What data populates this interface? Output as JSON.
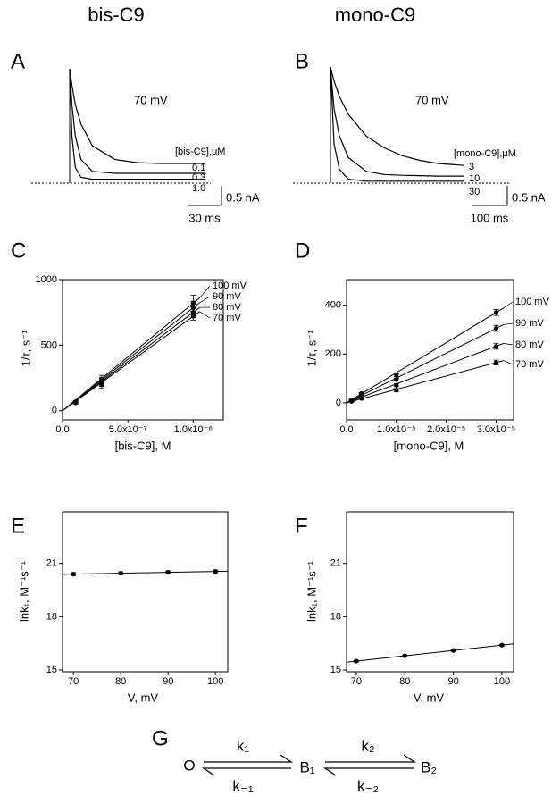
{
  "header": {
    "left": "bis-C9",
    "right": "mono-C9"
  },
  "chart_data": [
    {
      "type": "line",
      "panel": "A",
      "annotation": "70 mV",
      "legend_title": "[bis-C9],μM",
      "x": [
        0,
        2,
        5,
        10,
        20,
        40,
        60,
        80,
        100,
        120
      ],
      "series": [
        {
          "name": "0.1",
          "color": "#000000",
          "values": [
            2.9,
            2.5,
            2.0,
            1.5,
            0.95,
            0.6,
            0.52,
            0.5,
            0.5,
            0.5
          ]
        },
        {
          "name": "0.3",
          "color": "#000000",
          "values": [
            2.9,
            2.0,
            1.2,
            0.6,
            0.3,
            0.25,
            0.25,
            0.25,
            0.25,
            0.25
          ]
        },
        {
          "name": "1.0",
          "color": "#000000",
          "values": [
            2.9,
            1.2,
            0.4,
            0.15,
            0.1,
            0.1,
            0.1,
            0.1,
            0.1,
            0.1
          ]
        }
      ],
      "scale_bar": {
        "x": {
          "value": 30,
          "label": "30 ms"
        },
        "y": {
          "value": 0.5,
          "label": "0.5 nA"
        }
      }
    },
    {
      "type": "line",
      "panel": "B",
      "annotation": "70 mV",
      "legend_title": "[mono-C9],μM",
      "x": [
        0,
        10,
        25,
        50,
        100,
        150,
        200,
        250,
        300,
        375
      ],
      "series": [
        {
          "name": "3",
          "color": "#000000",
          "values": [
            2.95,
            2.6,
            2.2,
            1.75,
            1.2,
            0.9,
            0.7,
            0.58,
            0.5,
            0.45
          ]
        },
        {
          "name": "10",
          "color": "#000000",
          "values": [
            2.95,
            1.9,
            1.2,
            0.65,
            0.3,
            0.22,
            0.2,
            0.19,
            0.18,
            0.18
          ]
        },
        {
          "name": "30",
          "color": "#000000",
          "values": [
            2.95,
            1.0,
            0.35,
            0.1,
            0.05,
            0.05,
            0.05,
            0.05,
            0.05,
            0.05
          ]
        }
      ],
      "scale_bar": {
        "x": {
          "value": 100,
          "label": "100 ms"
        },
        "y": {
          "value": 0.5,
          "label": "0.5 nA"
        }
      }
    },
    {
      "type": "scatter",
      "panel": "C",
      "x_label": "[bis-C9], M",
      "y_label": "1/τ, s⁻¹",
      "fit": "origin",
      "x": [
        1e-07,
        3e-07,
        1e-06
      ],
      "series": [
        {
          "name": "100 mV",
          "color": "#000000",
          "values": [
            68,
            240,
            820
          ],
          "errors": [
            8,
            30,
            60
          ]
        },
        {
          "name": "90 mV",
          "color": "#000000",
          "values": [
            65,
            225,
            785
          ],
          "errors": [
            8,
            30,
            50
          ]
        },
        {
          "name": "80 mV",
          "color": "#000000",
          "values": [
            62,
            215,
            750
          ],
          "errors": [
            8,
            30,
            40
          ]
        },
        {
          "name": "70 mV",
          "color": "#000000",
          "values": [
            60,
            200,
            720
          ],
          "errors": [
            8,
            30,
            30
          ]
        }
      ],
      "xlim": [
        0,
        1.23e-06
      ],
      "xticks": [
        {
          "value": 0,
          "label": "0.0"
        },
        {
          "value": 5e-07,
          "label": "5.0x10⁻⁷"
        },
        {
          "value": 1e-06,
          "label": "1.0x10⁻⁶"
        }
      ],
      "ylim": [
        -70,
        1000
      ],
      "yticks": [
        0,
        500,
        1000
      ]
    },
    {
      "type": "scatter",
      "panel": "D",
      "x_label": "[mono-C9], M",
      "y_label": "1/τ, s⁻¹",
      "fit": "origin",
      "x": [
        1e-06,
        3e-06,
        1e-05,
        3e-05
      ],
      "series": [
        {
          "name": "100 mV",
          "color": "#000000",
          "values": [
            12,
            38,
            113,
            370
          ],
          "errors": [
            3,
            4,
            6,
            12
          ]
        },
        {
          "name": "90 mV",
          "color": "#000000",
          "values": [
            10,
            32,
            95,
            305
          ],
          "errors": [
            3,
            4,
            6,
            12
          ]
        },
        {
          "name": "80 mV",
          "color": "#000000",
          "values": [
            8,
            25,
            72,
            232
          ],
          "errors": [
            3,
            4,
            6,
            12
          ]
        },
        {
          "name": "70 mV",
          "color": "#000000",
          "values": [
            6,
            18,
            52,
            165
          ],
          "errors": [
            3,
            4,
            6,
            10
          ]
        }
      ],
      "xlim": [
        0,
        3.35e-05
      ],
      "xticks": [
        {
          "value": 0,
          "label": "0.0"
        },
        {
          "value": 1e-05,
          "label": "1.0x10⁻⁵"
        },
        {
          "value": 2e-05,
          "label": "2.0x10⁻⁵"
        },
        {
          "value": 3e-05,
          "label": "3.0x10⁻⁵"
        }
      ],
      "ylim": [
        -70,
        505
      ],
      "yticks": [
        0,
        200,
        400
      ]
    },
    {
      "type": "scatter",
      "panel": "E",
      "x_label": "V, mV",
      "y_label": "lnk₁, M⁻¹s⁻¹",
      "fit": "linear",
      "x": [
        70,
        80,
        90,
        100
      ],
      "series": [
        {
          "color": "#000000",
          "values": [
            20.4,
            20.45,
            20.5,
            20.55
          ],
          "errors": [
            0.08,
            0.08,
            0.08,
            0.08
          ]
        }
      ],
      "xlim": [
        67.7,
        102.6
      ],
      "xticks": [
        70,
        80,
        90,
        100
      ],
      "ylim": [
        14.9,
        23.9
      ],
      "yticks": [
        15,
        18,
        21
      ]
    },
    {
      "type": "scatter",
      "panel": "F",
      "x_label": "V, mV",
      "y_label": "lnk₁, M⁻¹s⁻¹",
      "fit": "linear",
      "x": [
        70,
        80,
        90,
        100
      ],
      "series": [
        {
          "color": "#000000",
          "values": [
            15.5,
            15.8,
            16.1,
            16.4
          ],
          "errors": [
            0.05,
            0.05,
            0.05,
            0.05
          ]
        }
      ],
      "xlim": [
        68,
        102.4
      ],
      "xticks": [
        70,
        80,
        90,
        100
      ],
      "ylim": [
        14.9,
        23.9
      ],
      "yticks": [
        15,
        18,
        21
      ]
    }
  ],
  "scheme": {
    "panel": "G",
    "states": [
      "O",
      "B₁",
      "B₂"
    ],
    "rates": {
      "k1": "k₁",
      "k_1": "k₋₁",
      "k2": "k₂",
      "k_2": "k₋₂"
    }
  }
}
